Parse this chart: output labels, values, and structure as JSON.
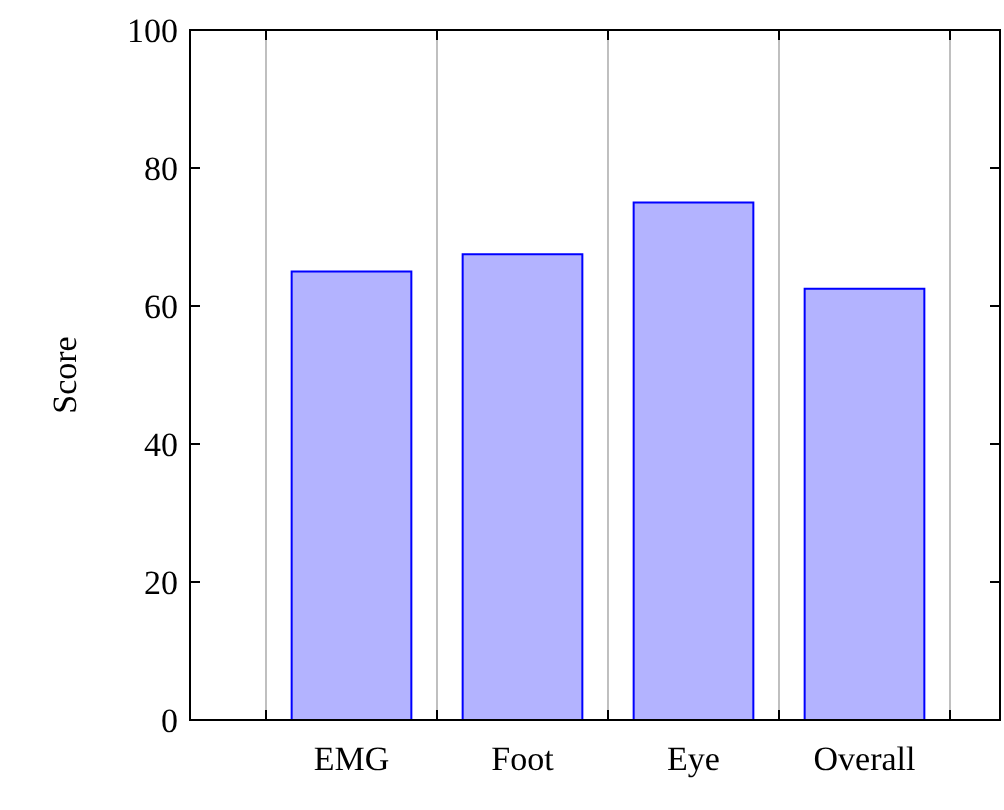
{
  "chart_data": {
    "type": "bar",
    "ylabel": "Score",
    "categories": [
      "EMG",
      "Foot",
      "Eye",
      "Overall"
    ],
    "values": [
      65,
      67.5,
      75,
      62.5
    ],
    "color": "#b3b3ff",
    "ylim": [
      0,
      100
    ],
    "yticks": [
      0,
      20,
      40,
      60,
      80,
      100
    ],
    "grid": "x"
  }
}
